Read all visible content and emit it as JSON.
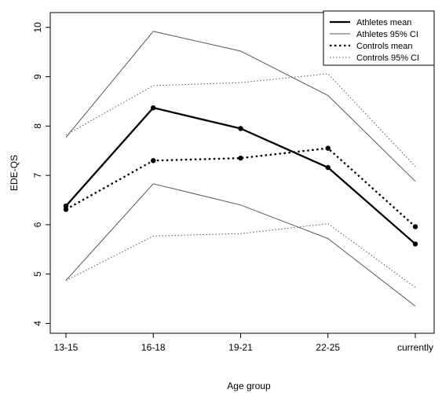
{
  "chart_data": {
    "type": "line",
    "categories": [
      "13-15",
      "16-18",
      "19-21",
      "22-25",
      "currently"
    ],
    "xlabel": "Age group",
    "ylabel": "EDE-QS",
    "ylim": [
      3.8,
      10.3
    ],
    "yticks": [
      4,
      5,
      6,
      7,
      8,
      9,
      10
    ],
    "grid": false,
    "legend_position": "top-right",
    "series": [
      {
        "name": "Athletes mean",
        "style": "solid",
        "weight": "thick",
        "markers": true,
        "color": "#000000",
        "values": [
          6.38,
          8.37,
          7.95,
          7.16,
          5.61
        ]
      },
      {
        "name": "Athletes 95% CI",
        "style": "solid",
        "weight": "thin",
        "markers": false,
        "color": "#555555",
        "band": [
          [
            4.87,
            6.83,
            6.4,
            5.72,
            4.35
          ],
          [
            7.77,
            9.92,
            9.52,
            8.62,
            6.88
          ]
        ]
      },
      {
        "name": "Controls mean",
        "style": "dotted",
        "weight": "thick",
        "markers": true,
        "color": "#000000",
        "values": [
          6.31,
          7.3,
          7.35,
          7.55,
          5.96
        ]
      },
      {
        "name": "Controls 95% CI",
        "style": "dotted",
        "weight": "thin",
        "markers": false,
        "color": "#555555",
        "band": [
          [
            4.87,
            5.77,
            5.82,
            6.02,
            4.73
          ],
          [
            7.82,
            8.82,
            8.88,
            9.06,
            7.18
          ]
        ]
      }
    ]
  }
}
